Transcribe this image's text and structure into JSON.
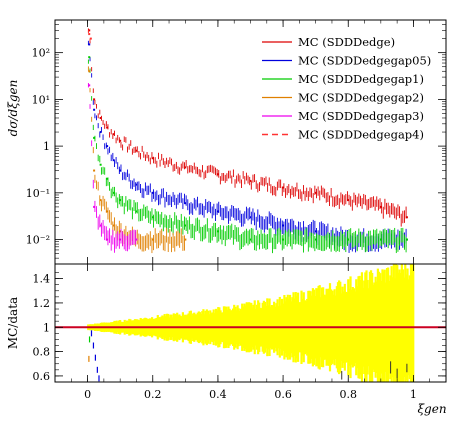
{
  "chart_data": {
    "type": "line",
    "upper_panel": {
      "ylabel": "dσ/dξgen",
      "yscale": "log",
      "ylim": [
        0.003,
        500
      ],
      "y_ticks": [
        {
          "value": 0.01,
          "label": "10⁻²"
        },
        {
          "value": 0.1,
          "label": "10⁻¹"
        },
        {
          "value": 1,
          "label": "1"
        },
        {
          "value": 10,
          "label": "10¹"
        },
        {
          "value": 100,
          "label": "10²"
        }
      ],
      "legend_position": "top-right",
      "series": [
        {
          "name": "MC (SDDDedge)",
          "color": "#dd0000",
          "style": "solid",
          "x": [
            0.005,
            0.02,
            0.04,
            0.06,
            0.08,
            0.1,
            0.15,
            0.2,
            0.3,
            0.4,
            0.5,
            0.6,
            0.7,
            0.8,
            0.9,
            0.98
          ],
          "y": [
            300,
            10,
            4,
            2.5,
            1.8,
            1.3,
            0.8,
            0.55,
            0.35,
            0.25,
            0.18,
            0.13,
            0.1,
            0.07,
            0.05,
            0.03
          ]
        },
        {
          "name": "MC (SDDDedgegap05)",
          "color": "#0000dd",
          "style": "solid",
          "x": [
            0.005,
            0.02,
            0.04,
            0.06,
            0.08,
            0.1,
            0.15,
            0.2,
            0.3,
            0.4,
            0.5,
            0.6,
            0.7,
            0.8,
            0.9,
            0.98
          ],
          "y": [
            150,
            6,
            2,
            1,
            0.5,
            0.3,
            0.15,
            0.1,
            0.06,
            0.04,
            0.03,
            0.02,
            0.015,
            0.01,
            0.01,
            0.01
          ]
        },
        {
          "name": "MC (SDDDedgegap1)",
          "color": "#00cc00",
          "style": "solid",
          "x": [
            0.005,
            0.02,
            0.04,
            0.06,
            0.08,
            0.1,
            0.15,
            0.2,
            0.3,
            0.4,
            0.5,
            0.6,
            0.7,
            0.8,
            0.9,
            0.98
          ],
          "y": [
            80,
            1.5,
            0.4,
            0.2,
            0.1,
            0.07,
            0.04,
            0.03,
            0.02,
            0.015,
            0.01,
            0.01,
            0.01,
            0.01,
            0.01,
            0.01
          ]
        },
        {
          "name": "MC (SDDDedgegap2)",
          "color": "#e08000",
          "style": "solid",
          "x": [
            0.005,
            0.02,
            0.04,
            0.06,
            0.08,
            0.1,
            0.15,
            0.2,
            0.3
          ],
          "y": [
            40,
            0.3,
            0.07,
            0.04,
            0.02,
            0.015,
            0.01,
            0.01,
            0.01
          ]
        },
        {
          "name": "MC (SDDDedgegap3)",
          "color": "#ee00ee",
          "style": "solid",
          "x": [
            0.005,
            0.02,
            0.04,
            0.06,
            0.1,
            0.15
          ],
          "y": [
            20,
            0.05,
            0.02,
            0.01,
            0.01,
            0.01
          ]
        },
        {
          "name": "MC (SDDDedgegap4)",
          "color": "#ff3333",
          "style": "dashed",
          "x": [
            0.005,
            0.01
          ],
          "y": [
            250,
            200
          ]
        }
      ]
    },
    "lower_panel": {
      "ylabel": "MC/data",
      "ylim": [
        0.55,
        1.52
      ],
      "y_ticks": [
        0.6,
        0.8,
        1,
        1.2,
        1.4
      ],
      "reference_line": 1.0,
      "band": {
        "color": "#ffff00",
        "x": [
          0.0,
          0.2,
          0.4,
          0.6,
          0.8,
          1.0
        ],
        "half_width": [
          0.02,
          0.08,
          0.14,
          0.22,
          0.35,
          0.5
        ]
      }
    },
    "xlabel": "ξgen",
    "xlim": [
      -0.1,
      1.1
    ],
    "x_ticks": [
      0,
      0.2,
      0.4,
      0.6,
      0.8,
      1
    ]
  }
}
